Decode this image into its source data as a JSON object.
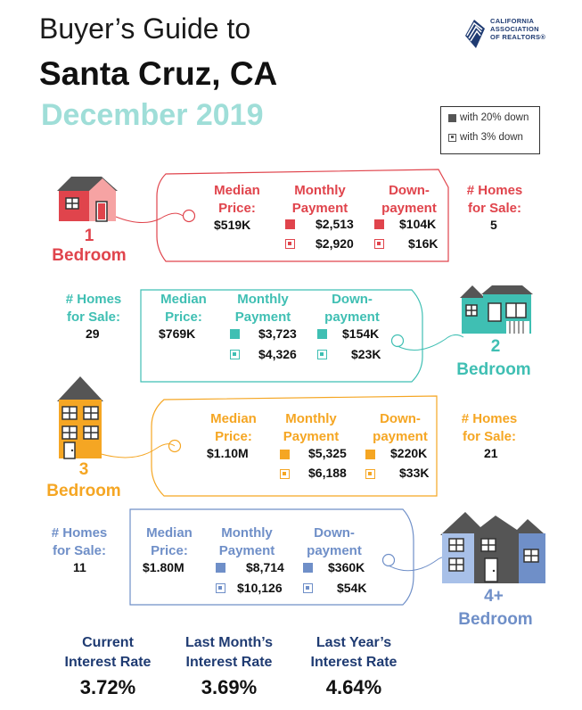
{
  "title": {
    "line1": "Buyer’s Guide to",
    "line2": "Santa Cruz, CA",
    "line3": "December 2019"
  },
  "logo": {
    "icon": "car-logo-icon",
    "text_line1": "CALIFORNIA",
    "text_line2": "ASSOCIATION",
    "text_line3": "OF REALTORS®"
  },
  "legend": {
    "solid_label": "with 20% down",
    "hollow_label": "with 3% down"
  },
  "labels": {
    "median_1": "Median",
    "median_2": "Price:",
    "monthly_1": "Monthly",
    "monthly_2": "Payment",
    "down_1": "Down-",
    "down_2": "payment",
    "homes_1": "# Homes",
    "homes_2": "for Sale:",
    "bedroom": "Bedroom"
  },
  "colors": {
    "one": "#e0444c",
    "two": "#3fbfb3",
    "three": "#f5a623",
    "four": "#6f8fc8"
  },
  "rooms": [
    {
      "num": "1",
      "median": "$519K",
      "monthly20": "$2,513",
      "monthly3": "$2,920",
      "down20": "$104K",
      "down3": "$16K",
      "homes": "5",
      "icon": "house-1-bedroom-icon"
    },
    {
      "num": "2",
      "median": "$769K",
      "monthly20": "$3,723",
      "monthly3": "$4,326",
      "down20": "$154K",
      "down3": "$23K",
      "homes": "29",
      "icon": "house-2-bedroom-icon"
    },
    {
      "num": "3",
      "median": "$1.10M",
      "monthly20": "$5,325",
      "monthly3": "$6,188",
      "down20": "$220K",
      "down3": "$33K",
      "homes": "21",
      "icon": "house-3-bedroom-icon"
    },
    {
      "num": "4+",
      "median": "$1.80M",
      "monthly20": "$8,714",
      "monthly3": "$10,126",
      "down20": "$360K",
      "down3": "$54K",
      "homes": "11",
      "icon": "house-4-bedroom-icon"
    }
  ],
  "rates": [
    {
      "line1": "Current",
      "line2": "Interest Rate",
      "value": "3.72%"
    },
    {
      "line1": "Last Month’s",
      "line2": "Interest Rate",
      "value": "3.69%"
    },
    {
      "line1": "Last Year’s",
      "line2": "Interest Rate",
      "value": "4.64%"
    }
  ]
}
